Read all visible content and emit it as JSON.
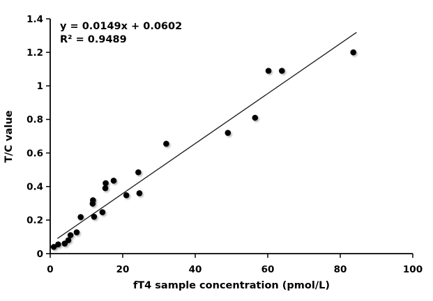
{
  "chart_data": {
    "type": "scatter",
    "title": "",
    "xlabel": "fT4 sample concentration (pmol/L)",
    "ylabel": "T/C value",
    "xlim": [
      0,
      100
    ],
    "ylim": [
      0,
      1.4
    ],
    "grid": false,
    "legend": null,
    "annotation": {
      "equation": "y = 0.0149x + 0.0602",
      "r_squared": "R² = 0.9489"
    },
    "trendline": {
      "slope": 0.0149,
      "intercept": 0.0602,
      "x_start": 2,
      "x_end": 84.5
    },
    "x_ticks": [
      {
        "value": 0,
        "label": "0"
      },
      {
        "value": 20,
        "label": "20"
      },
      {
        "value": 40,
        "label": "40"
      },
      {
        "value": 60,
        "label": "60"
      },
      {
        "value": 80,
        "label": "80"
      },
      {
        "value": 100,
        "label": "100"
      }
    ],
    "y_ticks": [
      {
        "value": 0,
        "label": "0"
      },
      {
        "value": 0.2,
        "label": "0.2"
      },
      {
        "value": 0.4,
        "label": "0.4"
      },
      {
        "value": 0.6,
        "label": "0.6"
      },
      {
        "value": 0.8,
        "label": "0.8"
      },
      {
        "value": 1,
        "label": "1"
      },
      {
        "value": 1.2,
        "label": "1.2"
      },
      {
        "value": 1.4,
        "label": "1.4"
      }
    ],
    "points": [
      [
        1,
        0.04
      ],
      [
        2.2,
        0.055
      ],
      [
        4,
        0.06
      ],
      [
        5,
        0.08
      ],
      [
        5.6,
        0.11
      ],
      [
        7.3,
        0.127
      ],
      [
        8.4,
        0.218
      ],
      [
        11.7,
        0.298
      ],
      [
        11.8,
        0.318
      ],
      [
        12.1,
        0.22
      ],
      [
        14.4,
        0.247
      ],
      [
        15.2,
        0.39
      ],
      [
        15.3,
        0.42
      ],
      [
        17.5,
        0.435
      ],
      [
        21,
        0.348
      ],
      [
        24.3,
        0.485
      ],
      [
        24.6,
        0.36
      ],
      [
        32,
        0.655
      ],
      [
        49,
        0.72
      ],
      [
        56.5,
        0.81
      ],
      [
        60.2,
        1.09
      ],
      [
        63.9,
        1.09
      ],
      [
        83.6,
        1.2
      ]
    ],
    "colors": {
      "axis": "#000000",
      "point": "#000000",
      "trendline": "#1a1a1a",
      "shadow": "#8c8c8c",
      "background": "#ffffff"
    }
  }
}
